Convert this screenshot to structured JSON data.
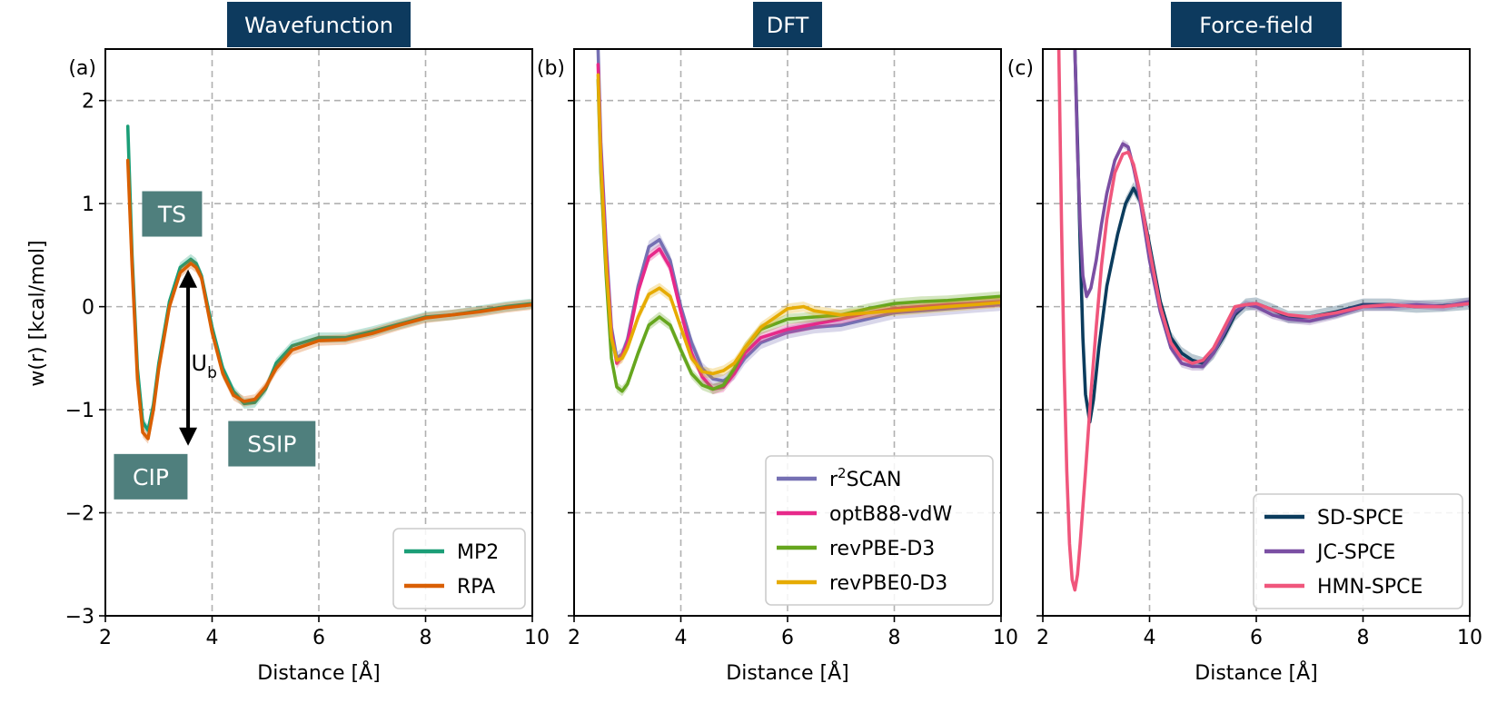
{
  "figure": {
    "ylabel": "w(r) [kcal/mol]"
  },
  "chart_data": [
    {
      "type": "line",
      "panel_label": "(a)",
      "title": "Wavefunction",
      "title_bg": "#0d3a5e",
      "xlabel": "Distance [Å]",
      "ylabel": "w(r) [kcal/mol]",
      "xlim": [
        2,
        10
      ],
      "ylim": [
        -3,
        2.5
      ],
      "xticks": [
        2,
        4,
        6,
        8,
        10
      ],
      "xtick_labels": [
        "2",
        "4",
        "6",
        "8",
        "10"
      ],
      "yticks": [
        -3,
        -2,
        -1,
        0,
        1,
        2
      ],
      "ytick_labels": [
        "−3",
        "−2",
        "−1",
        "0",
        "1",
        "2"
      ],
      "grid": true,
      "legend_position": "lower-right",
      "series": [
        {
          "name": "MP2",
          "color": "#1b9e77",
          "band": 0.05,
          "x": [
            2.42,
            2.5,
            2.6,
            2.7,
            2.8,
            2.9,
            3.0,
            3.2,
            3.4,
            3.6,
            3.7,
            3.8,
            4.0,
            4.2,
            4.4,
            4.6,
            4.8,
            5.0,
            5.2,
            5.5,
            6.0,
            6.5,
            7.0,
            7.5,
            8.0,
            8.5,
            9.0,
            9.5,
            10.0
          ],
          "y": [
            1.75,
            0.5,
            -0.6,
            -1.12,
            -1.2,
            -0.95,
            -0.55,
            0.05,
            0.38,
            0.46,
            0.42,
            0.3,
            -0.2,
            -0.6,
            -0.82,
            -0.94,
            -0.93,
            -0.8,
            -0.55,
            -0.38,
            -0.3,
            -0.3,
            -0.24,
            -0.17,
            -0.1,
            -0.08,
            -0.04,
            0.0,
            0.03
          ]
        },
        {
          "name": "RPA",
          "color": "#d95f02",
          "band": 0.05,
          "x": [
            2.42,
            2.5,
            2.6,
            2.7,
            2.8,
            2.9,
            3.0,
            3.2,
            3.4,
            3.6,
            3.7,
            3.8,
            4.0,
            4.2,
            4.4,
            4.6,
            4.8,
            5.0,
            5.2,
            5.5,
            6.0,
            6.5,
            7.0,
            7.5,
            8.0,
            8.5,
            9.0,
            9.5,
            10.0
          ],
          "y": [
            1.42,
            0.4,
            -0.7,
            -1.22,
            -1.28,
            -1.0,
            -0.6,
            0.0,
            0.33,
            0.42,
            0.38,
            0.28,
            -0.25,
            -0.65,
            -0.86,
            -0.92,
            -0.9,
            -0.78,
            -0.6,
            -0.42,
            -0.33,
            -0.32,
            -0.26,
            -0.18,
            -0.11,
            -0.08,
            -0.05,
            -0.01,
            0.02
          ]
        }
      ],
      "annotations": [
        {
          "text": "TS",
          "x": 3.25,
          "y": 0.9
        },
        {
          "text": "CIP",
          "x": 2.85,
          "y": -1.65
        },
        {
          "text": "SSIP",
          "x": 5.12,
          "y": -1.33
        }
      ],
      "arrow": {
        "x": 3.55,
        "y_top": 0.36,
        "y_bottom": -1.35,
        "label": "U",
        "label_sub": "b",
        "label_x": 3.85,
        "label_y": -0.62
      }
    },
    {
      "type": "line",
      "panel_label": "(b)",
      "title": "DFT",
      "title_bg": "#0d3a5e",
      "xlabel": "Distance [Å]",
      "xlim": [
        2,
        10
      ],
      "ylim": [
        -3,
        2.5
      ],
      "xticks": [
        2,
        4,
        6,
        8,
        10
      ],
      "xtick_labels": [
        "2",
        "4",
        "6",
        "8",
        "10"
      ],
      "yticks": [
        -3,
        -2,
        -1,
        0,
        1,
        2
      ],
      "grid": true,
      "legend_position": "lower-right",
      "series": [
        {
          "name": "r²SCAN",
          "label_main": "r",
          "label_sup": "2",
          "label_rest": "SCAN",
          "color": "#7570b3",
          "band": 0.06,
          "x": [
            2.45,
            2.5,
            2.6,
            2.7,
            2.8,
            2.9,
            3.0,
            3.2,
            3.4,
            3.6,
            3.8,
            4.0,
            4.2,
            4.4,
            4.6,
            4.8,
            5.0,
            5.2,
            5.5,
            6.0,
            6.5,
            7.0,
            7.5,
            8.0,
            8.5,
            9.0,
            9.5,
            10.0
          ],
          "y": [
            2.5,
            1.6,
            0.6,
            -0.2,
            -0.5,
            -0.46,
            -0.32,
            0.2,
            0.58,
            0.65,
            0.45,
            0.0,
            -0.35,
            -0.6,
            -0.7,
            -0.72,
            -0.65,
            -0.5,
            -0.35,
            -0.25,
            -0.2,
            -0.18,
            -0.12,
            -0.06,
            -0.04,
            -0.02,
            0.0,
            0.02
          ]
        },
        {
          "name": "optB88-vdW",
          "color": "#e7298a",
          "band": 0.05,
          "x": [
            2.45,
            2.5,
            2.6,
            2.7,
            2.8,
            2.9,
            3.0,
            3.2,
            3.4,
            3.6,
            3.8,
            4.0,
            4.2,
            4.4,
            4.6,
            4.8,
            5.0,
            5.2,
            5.5,
            6.0,
            6.5,
            7.0,
            7.5,
            8.0,
            8.5,
            9.0,
            9.5,
            10.0
          ],
          "y": [
            2.35,
            1.5,
            0.5,
            -0.25,
            -0.55,
            -0.48,
            -0.35,
            0.15,
            0.48,
            0.56,
            0.38,
            -0.05,
            -0.45,
            -0.68,
            -0.8,
            -0.78,
            -0.65,
            -0.45,
            -0.3,
            -0.22,
            -0.17,
            -0.12,
            -0.06,
            -0.02,
            0.0,
            0.02,
            0.03,
            0.05
          ]
        },
        {
          "name": "revPBE-D3",
          "color": "#66a61e",
          "band": 0.05,
          "x": [
            2.45,
            2.5,
            2.6,
            2.7,
            2.8,
            2.9,
            3.0,
            3.2,
            3.4,
            3.6,
            3.8,
            4.0,
            4.2,
            4.4,
            4.6,
            4.8,
            5.0,
            5.2,
            5.5,
            6.0,
            6.5,
            7.0,
            7.5,
            8.0,
            8.5,
            9.0,
            9.5,
            10.0
          ],
          "y": [
            2.2,
            1.3,
            0.3,
            -0.5,
            -0.78,
            -0.82,
            -0.75,
            -0.45,
            -0.18,
            -0.1,
            -0.18,
            -0.42,
            -0.65,
            -0.76,
            -0.8,
            -0.76,
            -0.6,
            -0.4,
            -0.22,
            -0.12,
            -0.1,
            -0.08,
            -0.02,
            0.03,
            0.05,
            0.06,
            0.08,
            0.1
          ]
        },
        {
          "name": "revPBE0-D3",
          "color": "#e6ab02",
          "band": 0.05,
          "x": [
            2.45,
            2.5,
            2.6,
            2.7,
            2.8,
            2.9,
            3.0,
            3.2,
            3.4,
            3.6,
            3.8,
            4.0,
            4.2,
            4.4,
            4.6,
            4.8,
            5.0,
            5.2,
            5.5,
            6.0,
            6.3,
            6.5,
            7.0,
            7.5,
            8.0,
            8.5,
            9.0,
            9.5,
            10.0
          ],
          "y": [
            2.25,
            1.4,
            0.4,
            -0.3,
            -0.52,
            -0.5,
            -0.4,
            -0.1,
            0.12,
            0.18,
            0.1,
            -0.2,
            -0.5,
            -0.63,
            -0.65,
            -0.62,
            -0.55,
            -0.4,
            -0.2,
            -0.02,
            0.0,
            -0.04,
            -0.08,
            -0.06,
            -0.04,
            -0.02,
            0.0,
            0.02,
            0.04
          ]
        }
      ]
    },
    {
      "type": "line",
      "panel_label": "(c)",
      "title": "Force-field",
      "title_bg": "#0d3a5e",
      "xlabel": "Distance [Å]",
      "xlim": [
        2,
        10
      ],
      "ylim": [
        -3,
        2.5
      ],
      "xticks": [
        2,
        4,
        6,
        8,
        10
      ],
      "xtick_labels": [
        "2",
        "4",
        "6",
        "8",
        "10"
      ],
      "yticks": [
        -3,
        -2,
        -1,
        0,
        1,
        2
      ],
      "grid": true,
      "legend_position": "lower-right",
      "series": [
        {
          "name": "SD-SPCE",
          "color": "#0b3c5d",
          "band": 0.06,
          "x": [
            2.6,
            2.65,
            2.7,
            2.75,
            2.8,
            2.88,
            2.95,
            3.05,
            3.2,
            3.4,
            3.55,
            3.7,
            3.85,
            4.0,
            4.2,
            4.4,
            4.6,
            4.8,
            5.0,
            5.2,
            5.4,
            5.6,
            5.8,
            6.0,
            6.3,
            6.6,
            7.0,
            7.5,
            8.0,
            8.5,
            9.0,
            9.5,
            10.0
          ],
          "y": [
            2.5,
            1.6,
            0.6,
            -0.3,
            -0.85,
            -1.12,
            -0.9,
            -0.4,
            0.2,
            0.7,
            1.0,
            1.15,
            1.0,
            0.6,
            0.05,
            -0.3,
            -0.45,
            -0.52,
            -0.55,
            -0.45,
            -0.28,
            -0.08,
            0.02,
            0.03,
            -0.03,
            -0.1,
            -0.1,
            -0.05,
            0.02,
            0.02,
            0.0,
            0.01,
            0.03
          ]
        },
        {
          "name": "JC-SPCE",
          "color": "#7b4fa3",
          "band": 0.04,
          "x": [
            2.6,
            2.65,
            2.7,
            2.75,
            2.82,
            2.9,
            3.0,
            3.1,
            3.2,
            3.35,
            3.5,
            3.6,
            3.7,
            3.8,
            4.0,
            4.2,
            4.4,
            4.6,
            4.8,
            5.0,
            5.2,
            5.4,
            5.6,
            5.8,
            6.0,
            6.3,
            6.6,
            7.0,
            7.5,
            8.0,
            8.5,
            9.0,
            9.5,
            10.0
          ],
          "y": [
            2.5,
            1.5,
            0.8,
            0.3,
            0.1,
            0.18,
            0.45,
            0.8,
            1.1,
            1.42,
            1.58,
            1.55,
            1.35,
            1.1,
            0.45,
            -0.05,
            -0.4,
            -0.55,
            -0.58,
            -0.58,
            -0.45,
            -0.25,
            -0.05,
            0.02,
            0.0,
            -0.08,
            -0.12,
            -0.14,
            -0.08,
            0.0,
            0.0,
            0.02,
            0.0,
            0.05
          ]
        },
        {
          "name": "HMN-SPCE",
          "color": "#f0567c",
          "band": 0.0,
          "x": [
            2.3,
            2.35,
            2.4,
            2.45,
            2.5,
            2.55,
            2.6,
            2.65,
            2.7,
            2.8,
            2.9,
            3.0,
            3.1,
            3.2,
            3.35,
            3.5,
            3.6,
            3.7,
            3.8,
            4.0,
            4.2,
            4.4,
            4.6,
            4.8,
            5.0,
            5.2,
            5.4,
            5.6,
            5.8,
            6.0,
            6.3,
            6.6,
            7.0,
            7.5,
            8.0,
            8.5,
            9.0,
            9.5,
            10.0
          ],
          "y": [
            2.5,
            0.8,
            -0.6,
            -1.6,
            -2.3,
            -2.65,
            -2.75,
            -2.6,
            -2.3,
            -1.6,
            -0.85,
            -0.2,
            0.4,
            0.85,
            1.3,
            1.48,
            1.5,
            1.38,
            1.15,
            0.55,
            0.0,
            -0.35,
            -0.5,
            -0.55,
            -0.52,
            -0.4,
            -0.2,
            0.0,
            0.02,
            0.03,
            -0.03,
            -0.08,
            -0.1,
            -0.06,
            0.0,
            0.02,
            0.0,
            0.0,
            0.03
          ]
        }
      ]
    }
  ]
}
